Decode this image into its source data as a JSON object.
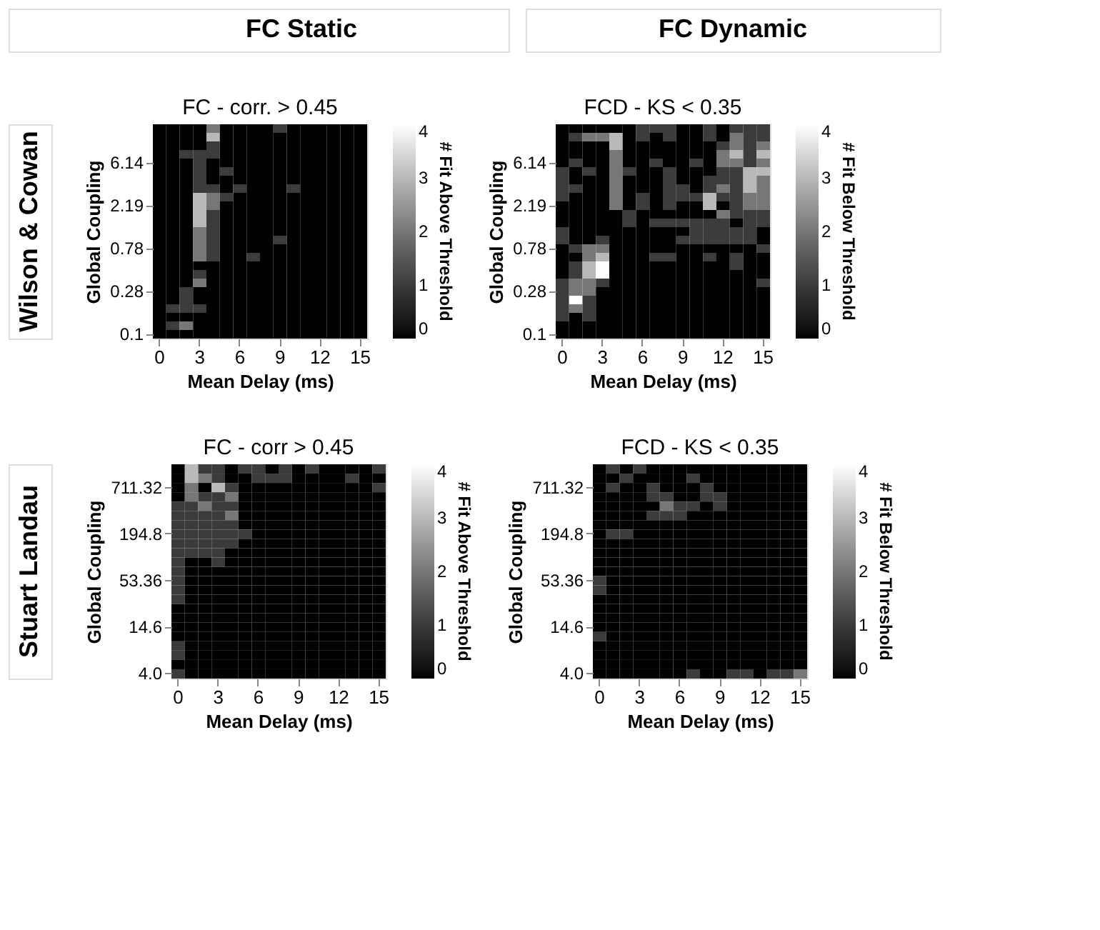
{
  "chart_data": [
    {
      "type": "other",
      "annotations": [
        "FC Static",
        "FC Dynamic",
        "Wilson & Cowan",
        "Stuart Landau"
      ]
    },
    {
      "type": "heatmap",
      "title": "FC - corr. > 0.45",
      "xlabel": "Mean Delay (ms)",
      "ylabel": "Global Coupling",
      "clabel": "# Fit Above Threshold",
      "clim": [
        0,
        4
      ],
      "cticks": [
        0,
        1,
        2,
        3,
        4
      ],
      "grid": false,
      "categories": [
        "0",
        null,
        null,
        "3",
        null,
        null,
        "6",
        null,
        null,
        "9",
        null,
        null,
        "12",
        null,
        null,
        "15"
      ],
      "y_categories": [
        null,
        null,
        null,
        null,
        "6.14",
        null,
        null,
        null,
        null,
        "2.19",
        null,
        null,
        null,
        null,
        "0.78",
        null,
        null,
        null,
        null,
        "0.28",
        null,
        null,
        null,
        null,
        "0.1"
      ],
      "cells": [
        [
          0,
          0,
          0,
          0,
          2,
          0,
          0,
          0,
          0,
          1,
          0,
          0,
          0,
          0,
          0,
          0
        ],
        [
          0,
          0,
          0,
          0,
          3,
          0,
          0,
          0,
          0,
          0,
          0,
          0,
          0,
          0,
          0,
          0
        ],
        [
          0,
          0,
          0,
          0,
          1,
          0,
          0,
          0,
          0,
          0,
          0,
          0,
          0,
          0,
          0,
          0
        ],
        [
          0,
          0,
          1,
          1,
          1,
          0,
          0,
          0,
          0,
          0,
          0,
          0,
          0,
          0,
          0,
          0
        ],
        [
          0,
          0,
          0,
          1,
          0,
          0,
          0,
          0,
          0,
          0,
          0,
          0,
          0,
          0,
          0,
          0
        ],
        [
          0,
          0,
          0,
          1,
          0,
          1,
          0,
          0,
          0,
          0,
          0,
          0,
          0,
          0,
          0,
          0
        ],
        [
          0,
          0,
          0,
          1,
          0,
          0,
          0,
          0,
          0,
          0,
          0,
          0,
          0,
          0,
          0,
          0
        ],
        [
          0,
          0,
          0,
          1,
          1,
          0,
          1,
          0,
          0,
          0,
          1,
          0,
          0,
          0,
          0,
          0
        ],
        [
          0,
          0,
          0,
          3,
          2,
          1,
          0,
          0,
          0,
          0,
          0,
          0,
          0,
          0,
          0,
          0
        ],
        [
          0,
          0,
          0,
          3,
          2,
          0,
          0,
          0,
          0,
          0,
          0,
          0,
          0,
          0,
          0,
          0
        ],
        [
          0,
          0,
          0,
          3,
          1,
          0,
          0,
          0,
          0,
          0,
          0,
          0,
          0,
          0,
          0,
          0
        ],
        [
          0,
          0,
          0,
          3,
          1,
          0,
          0,
          0,
          0,
          0,
          0,
          0,
          0,
          0,
          0,
          0
        ],
        [
          0,
          0,
          0,
          2,
          1,
          0,
          0,
          0,
          0,
          0,
          0,
          0,
          0,
          0,
          0,
          0
        ],
        [
          0,
          0,
          0,
          2,
          1,
          0,
          0,
          0,
          0,
          1,
          0,
          0,
          0,
          0,
          0,
          0
        ],
        [
          0,
          0,
          0,
          2,
          1,
          0,
          0,
          0,
          0,
          0,
          0,
          0,
          0,
          0,
          0,
          0
        ],
        [
          0,
          0,
          0,
          2,
          1,
          0,
          0,
          1,
          0,
          0,
          0,
          0,
          0,
          0,
          0,
          0
        ],
        [
          0,
          0,
          0,
          0,
          0,
          0,
          0,
          0,
          0,
          0,
          0,
          0,
          0,
          0,
          0,
          0
        ],
        [
          0,
          0,
          0,
          1,
          0,
          0,
          0,
          0,
          0,
          0,
          0,
          0,
          0,
          0,
          0,
          0
        ],
        [
          0,
          0,
          0,
          2,
          0,
          0,
          0,
          0,
          0,
          0,
          0,
          0,
          0,
          0,
          0,
          0
        ],
        [
          0,
          0,
          1,
          0,
          0,
          0,
          0,
          0,
          0,
          0,
          0,
          0,
          0,
          0,
          0,
          0
        ],
        [
          0,
          0,
          1,
          0,
          0,
          0,
          0,
          0,
          0,
          0,
          0,
          0,
          0,
          0,
          0,
          0
        ],
        [
          0,
          1,
          1,
          1,
          0,
          0,
          0,
          0,
          0,
          0,
          0,
          0,
          0,
          0,
          0,
          0
        ],
        [
          0,
          0,
          0,
          0,
          0,
          0,
          0,
          0,
          0,
          0,
          0,
          0,
          0,
          0,
          0,
          0
        ],
        [
          0,
          1,
          2,
          0,
          0,
          0,
          0,
          0,
          0,
          0,
          0,
          0,
          0,
          0,
          0,
          0
        ],
        [
          0,
          0,
          0,
          0,
          0,
          0,
          0,
          0,
          0,
          0,
          0,
          0,
          0,
          0,
          0,
          0
        ]
      ]
    },
    {
      "type": "heatmap",
      "title": "FCD - KS < 0.35",
      "xlabel": "Mean Delay (ms)",
      "ylabel": "Global Coupling",
      "clabel": "# Fit Below Threshold",
      "clim": [
        0,
        4
      ],
      "cticks": [
        0,
        1,
        2,
        3,
        4
      ],
      "grid": false,
      "categories": [
        "0",
        null,
        null,
        "3",
        null,
        null,
        "6",
        null,
        null,
        "9",
        null,
        null,
        "12",
        null,
        null,
        "15"
      ],
      "y_categories": [
        null,
        null,
        null,
        null,
        "6.14",
        null,
        null,
        null,
        null,
        "2.19",
        null,
        null,
        null,
        null,
        "0.78",
        null,
        null,
        null,
        null,
        "0.28",
        null,
        null,
        null,
        null,
        "0.1"
      ],
      "cells": [
        [
          0,
          0,
          0,
          0,
          0,
          0,
          1,
          1,
          1,
          0,
          0,
          1,
          0,
          1,
          1,
          1
        ],
        [
          0,
          1,
          2,
          2,
          3,
          0,
          1,
          0,
          1,
          0,
          0,
          1,
          0,
          2,
          1,
          1
        ],
        [
          0,
          0,
          0,
          0,
          3,
          0,
          0,
          0,
          0,
          0,
          0,
          0,
          1,
          2,
          1,
          2
        ],
        [
          0,
          0,
          0,
          0,
          2,
          0,
          0,
          0,
          0,
          0,
          0,
          0,
          2,
          3,
          1,
          3
        ],
        [
          0,
          1,
          0,
          0,
          2,
          0,
          0,
          1,
          0,
          0,
          1,
          0,
          2,
          2,
          1,
          2
        ],
        [
          1,
          0,
          1,
          0,
          2,
          1,
          0,
          0,
          1,
          0,
          0,
          0,
          1,
          1,
          3,
          3
        ],
        [
          1,
          0,
          0,
          0,
          2,
          0,
          0,
          0,
          1,
          0,
          0,
          1,
          1,
          1,
          3,
          2
        ],
        [
          1,
          1,
          0,
          0,
          2,
          0,
          0,
          0,
          1,
          1,
          0,
          1,
          2,
          1,
          3,
          2
        ],
        [
          1,
          0,
          0,
          0,
          2,
          0,
          1,
          0,
          1,
          1,
          1,
          3,
          1,
          1,
          2,
          2
        ],
        [
          0,
          0,
          0,
          0,
          2,
          0,
          1,
          0,
          1,
          0,
          0,
          3,
          0,
          1,
          2,
          2
        ],
        [
          0,
          0,
          0,
          0,
          0,
          1,
          0,
          0,
          0,
          0,
          0,
          0,
          2,
          1,
          1,
          1
        ],
        [
          0,
          0,
          0,
          0,
          0,
          1,
          0,
          1,
          1,
          1,
          1,
          1,
          1,
          0,
          1,
          1
        ],
        [
          1,
          0,
          0,
          0,
          0,
          0,
          0,
          0,
          0,
          0,
          1,
          1,
          1,
          1,
          1,
          0
        ],
        [
          1,
          0,
          0,
          1,
          0,
          0,
          0,
          0,
          0,
          1,
          1,
          1,
          1,
          1,
          1,
          0
        ],
        [
          0,
          1,
          2,
          2,
          0,
          0,
          0,
          0,
          0,
          0,
          0,
          0,
          0,
          0,
          0,
          1
        ],
        [
          0,
          0,
          2,
          3,
          0,
          0,
          0,
          1,
          1,
          0,
          0,
          1,
          0,
          1,
          0,
          0
        ],
        [
          0,
          1,
          3,
          4,
          0,
          0,
          0,
          0,
          0,
          0,
          0,
          0,
          0,
          1,
          0,
          0
        ],
        [
          0,
          1,
          3,
          4,
          0,
          0,
          0,
          0,
          0,
          0,
          0,
          0,
          0,
          0,
          0,
          0
        ],
        [
          1,
          2,
          2,
          1,
          0,
          0,
          0,
          0,
          0,
          0,
          0,
          0,
          0,
          0,
          0,
          1
        ],
        [
          1,
          2,
          2,
          0,
          0,
          0,
          0,
          0,
          0,
          0,
          0,
          0,
          0,
          0,
          0,
          0
        ],
        [
          1,
          4,
          1,
          0,
          0,
          0,
          0,
          0,
          0,
          0,
          0,
          0,
          0,
          0,
          0,
          0
        ],
        [
          1,
          2,
          1,
          0,
          0,
          0,
          0,
          0,
          0,
          0,
          0,
          0,
          0,
          0,
          0,
          0
        ],
        [
          1,
          0,
          1,
          0,
          0,
          0,
          0,
          0,
          0,
          0,
          0,
          0,
          0,
          0,
          0,
          0
        ],
        [
          0,
          0,
          0,
          0,
          0,
          0,
          0,
          0,
          0,
          0,
          0,
          0,
          0,
          0,
          0,
          0
        ],
        [
          0,
          0,
          0,
          0,
          0,
          0,
          0,
          0,
          0,
          0,
          0,
          0,
          0,
          0,
          0,
          0
        ]
      ]
    },
    {
      "type": "heatmap",
      "title": "FC - corr > 0.45",
      "xlabel": "Mean Delay (ms)",
      "ylabel": "Global Coupling",
      "clabel": "# Fit Above Threshold",
      "clim": [
        0,
        4
      ],
      "cticks": [
        0,
        1,
        2,
        3,
        4
      ],
      "grid": false,
      "categories": [
        "0",
        null,
        null,
        "3",
        null,
        null,
        "6",
        null,
        null,
        "9",
        null,
        null,
        "12",
        null,
        null,
        "15"
      ],
      "y_categories": [
        null,
        null,
        "711.32",
        null,
        null,
        null,
        null,
        "194.8",
        null,
        null,
        null,
        null,
        "53.36",
        null,
        null,
        null,
        null,
        "14.6",
        null,
        null,
        null,
        null,
        "4.0"
      ],
      "cells": [
        [
          0,
          3,
          1,
          1,
          0,
          1,
          1,
          0,
          1,
          0,
          1,
          0,
          0,
          0,
          0,
          1
        ],
        [
          0,
          3,
          2,
          1,
          0,
          0,
          1,
          1,
          1,
          0,
          0,
          0,
          0,
          1,
          0,
          0
        ],
        [
          0,
          2,
          0,
          3,
          1,
          0,
          0,
          0,
          0,
          0,
          0,
          0,
          0,
          0,
          0,
          1
        ],
        [
          0,
          2,
          1,
          1,
          2,
          0,
          0,
          0,
          0,
          0,
          0,
          0,
          0,
          0,
          0,
          0
        ],
        [
          1,
          1,
          2,
          1,
          1,
          0,
          0,
          0,
          0,
          0,
          0,
          0,
          0,
          0,
          0,
          0
        ],
        [
          1,
          1,
          1,
          1,
          2,
          0,
          0,
          0,
          0,
          0,
          0,
          0,
          0,
          0,
          0,
          0
        ],
        [
          1,
          1,
          1,
          1,
          1,
          0,
          0,
          0,
          0,
          0,
          0,
          0,
          0,
          0,
          0,
          0
        ],
        [
          1,
          1,
          1,
          1,
          1,
          1,
          0,
          0,
          0,
          0,
          0,
          0,
          0,
          0,
          0,
          0
        ],
        [
          1,
          1,
          1,
          1,
          1,
          0,
          0,
          0,
          0,
          0,
          0,
          0,
          0,
          0,
          0,
          0
        ],
        [
          1,
          1,
          1,
          1,
          0,
          0,
          0,
          0,
          0,
          0,
          0,
          0,
          0,
          0,
          0,
          0
        ],
        [
          1,
          0,
          0,
          1,
          0,
          0,
          0,
          0,
          0,
          0,
          0,
          0,
          0,
          0,
          0,
          0
        ],
        [
          1,
          0,
          0,
          0,
          0,
          0,
          0,
          0,
          0,
          0,
          0,
          0,
          0,
          0,
          0,
          0
        ],
        [
          1,
          0,
          0,
          0,
          0,
          0,
          0,
          0,
          0,
          0,
          0,
          0,
          0,
          0,
          0,
          0
        ],
        [
          1,
          0,
          0,
          0,
          0,
          0,
          0,
          0,
          0,
          0,
          0,
          0,
          0,
          0,
          0,
          0
        ],
        [
          1,
          0,
          0,
          0,
          0,
          0,
          0,
          0,
          0,
          0,
          0,
          0,
          0,
          0,
          0,
          0
        ],
        [
          0,
          0,
          0,
          0,
          0,
          0,
          0,
          0,
          0,
          0,
          0,
          0,
          0,
          0,
          0,
          0
        ],
        [
          0,
          0,
          0,
          0,
          0,
          0,
          0,
          0,
          0,
          0,
          0,
          0,
          0,
          0,
          0,
          0
        ],
        [
          0,
          0,
          0,
          0,
          0,
          0,
          0,
          0,
          0,
          0,
          0,
          0,
          0,
          0,
          0,
          0
        ],
        [
          0,
          0,
          0,
          0,
          0,
          0,
          0,
          0,
          0,
          0,
          0,
          0,
          0,
          0,
          0,
          0
        ],
        [
          1,
          0,
          0,
          0,
          0,
          0,
          0,
          0,
          0,
          0,
          0,
          0,
          0,
          0,
          0,
          0
        ],
        [
          1,
          0,
          0,
          0,
          0,
          0,
          0,
          0,
          0,
          0,
          0,
          0,
          0,
          0,
          0,
          0
        ],
        [
          0,
          0,
          0,
          0,
          0,
          0,
          0,
          0,
          0,
          0,
          0,
          0,
          0,
          0,
          0,
          0
        ],
        [
          1,
          0,
          0,
          0,
          0,
          0,
          0,
          0,
          0,
          0,
          0,
          0,
          0,
          0,
          0,
          0
        ]
      ]
    },
    {
      "type": "heatmap",
      "title": "FCD - KS < 0.35",
      "xlabel": "Mean Delay (ms)",
      "ylabel": "Global Coupling",
      "clabel": "# Fit Below Threshold",
      "clim": [
        0,
        4
      ],
      "cticks": [
        0,
        1,
        2,
        3,
        4
      ],
      "grid": false,
      "categories": [
        "0",
        null,
        null,
        "3",
        null,
        null,
        "6",
        null,
        null,
        "9",
        null,
        null,
        "12",
        null,
        null,
        "15"
      ],
      "y_categories": [
        null,
        null,
        "711.32",
        null,
        null,
        null,
        null,
        "194.8",
        null,
        null,
        null,
        null,
        "53.36",
        null,
        null,
        null,
        null,
        "14.6",
        null,
        null,
        null,
        null,
        "4.0"
      ],
      "cells": [
        [
          0,
          1,
          0,
          1,
          0,
          0,
          0,
          0,
          0,
          0,
          0,
          0,
          0,
          0,
          0,
          0
        ],
        [
          0,
          0,
          1,
          0,
          0,
          0,
          0,
          1,
          0,
          0,
          0,
          0,
          0,
          0,
          0,
          0
        ],
        [
          0,
          1,
          0,
          0,
          1,
          0,
          0,
          0,
          1,
          0,
          0,
          0,
          0,
          0,
          0,
          0
        ],
        [
          0,
          0,
          0,
          0,
          1,
          1,
          0,
          0,
          1,
          1,
          0,
          0,
          0,
          0,
          0,
          0
        ],
        [
          0,
          0,
          0,
          0,
          0,
          2,
          1,
          1,
          0,
          1,
          0,
          0,
          0,
          0,
          0,
          0
        ],
        [
          0,
          0,
          0,
          0,
          1,
          1,
          1,
          0,
          0,
          0,
          0,
          0,
          0,
          0,
          0,
          0
        ],
        [
          0,
          0,
          0,
          0,
          0,
          0,
          0,
          0,
          0,
          0,
          0,
          0,
          0,
          0,
          0,
          0
        ],
        [
          0,
          1,
          1,
          0,
          0,
          0,
          0,
          0,
          0,
          0,
          0,
          0,
          0,
          0,
          0,
          0
        ],
        [
          0,
          0,
          0,
          0,
          0,
          0,
          0,
          0,
          0,
          0,
          0,
          0,
          0,
          0,
          0,
          0
        ],
        [
          0,
          0,
          0,
          0,
          0,
          0,
          0,
          0,
          0,
          0,
          0,
          0,
          0,
          0,
          0,
          0
        ],
        [
          0,
          0,
          0,
          0,
          0,
          0,
          0,
          0,
          0,
          0,
          0,
          0,
          0,
          0,
          0,
          0
        ],
        [
          0,
          0,
          0,
          0,
          0,
          0,
          0,
          0,
          0,
          0,
          0,
          0,
          0,
          0,
          0,
          0
        ],
        [
          1,
          0,
          0,
          0,
          0,
          0,
          0,
          0,
          0,
          0,
          0,
          0,
          0,
          0,
          0,
          0
        ],
        [
          1,
          0,
          0,
          0,
          0,
          0,
          0,
          0,
          0,
          0,
          0,
          0,
          0,
          0,
          0,
          0
        ],
        [
          0,
          0,
          0,
          0,
          0,
          0,
          0,
          0,
          0,
          0,
          0,
          0,
          0,
          0,
          0,
          0
        ],
        [
          0,
          0,
          0,
          0,
          0,
          0,
          0,
          0,
          0,
          0,
          0,
          0,
          0,
          0,
          0,
          0
        ],
        [
          0,
          0,
          0,
          0,
          0,
          0,
          0,
          0,
          0,
          0,
          0,
          0,
          0,
          0,
          0,
          0
        ],
        [
          0,
          0,
          0,
          0,
          0,
          0,
          0,
          0,
          0,
          0,
          0,
          0,
          0,
          0,
          0,
          0
        ],
        [
          1,
          0,
          0,
          0,
          0,
          0,
          0,
          0,
          0,
          0,
          0,
          0,
          0,
          0,
          0,
          0
        ],
        [
          0,
          0,
          0,
          0,
          0,
          0,
          0,
          0,
          0,
          0,
          0,
          0,
          0,
          0,
          0,
          0
        ],
        [
          0,
          0,
          0,
          0,
          0,
          0,
          0,
          0,
          0,
          0,
          0,
          0,
          0,
          0,
          0,
          0
        ],
        [
          0,
          0,
          0,
          0,
          0,
          0,
          0,
          0,
          0,
          0,
          0,
          0,
          0,
          0,
          0,
          0
        ],
        [
          0,
          0,
          0,
          0,
          0,
          0,
          0,
          1,
          0,
          0,
          1,
          1,
          0,
          1,
          1,
          2
        ]
      ]
    }
  ]
}
